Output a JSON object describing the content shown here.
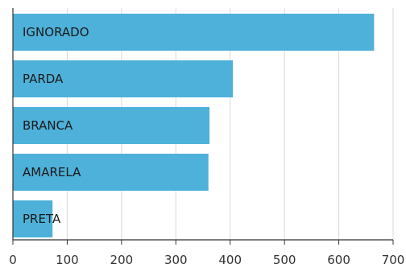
{
  "chart_data": {
    "type": "bar",
    "orientation": "horizontal",
    "categories": [
      "IGNORADO",
      "PARDA",
      "BRANCA",
      "AMARELA",
      "PRETA"
    ],
    "values": [
      665,
      405,
      362,
      360,
      73
    ],
    "xlim": [
      0,
      700
    ],
    "xticks": [
      0,
      100,
      200,
      300,
      400,
      500,
      600,
      700
    ],
    "grid": "vertical",
    "bar_color": "#4eb1d9",
    "title": "",
    "xlabel": "",
    "ylabel": ""
  }
}
